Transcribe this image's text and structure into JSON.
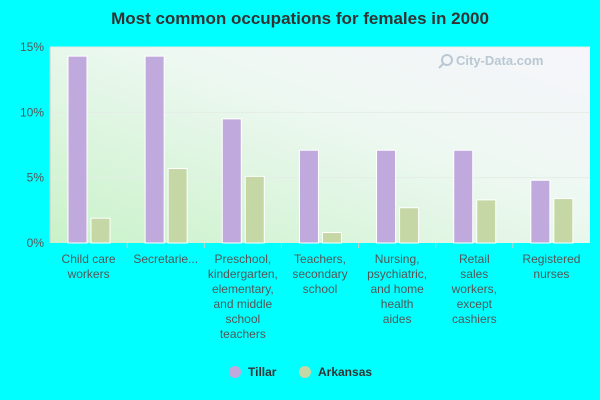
{
  "chart_data": {
    "type": "bar",
    "title": "Most common occupations for females in 2000",
    "categories": [
      [
        "Child care",
        "workers"
      ],
      [
        "Secretarie..."
      ],
      [
        "Preschool,",
        "kindergarten,",
        "elementary,",
        "and middle",
        "school",
        "teachers"
      ],
      [
        "Teachers,",
        "secondary",
        "school"
      ],
      [
        "Nursing,",
        "psychiatric,",
        "and home",
        "health",
        "aides"
      ],
      [
        "Retail",
        "sales",
        "workers,",
        "except",
        "cashiers"
      ],
      [
        "Registered",
        "nurses"
      ]
    ],
    "series": [
      {
        "name": "Tillar",
        "color": "#c0a9dc",
        "values": [
          14.3,
          14.3,
          9.5,
          7.1,
          7.1,
          7.1,
          4.8
        ]
      },
      {
        "name": "Arkansas",
        "color": "#c5d7a5",
        "values": [
          1.9,
          5.7,
          5.1,
          0.8,
          2.7,
          3.3,
          3.4
        ]
      }
    ],
    "yticks": [
      "0%",
      "5%",
      "10%",
      "15%"
    ],
    "ylim": [
      0,
      15
    ],
    "xlabel": "",
    "ylabel": "",
    "legend_position": "bottom-center"
  },
  "watermark": "City-Data.com"
}
